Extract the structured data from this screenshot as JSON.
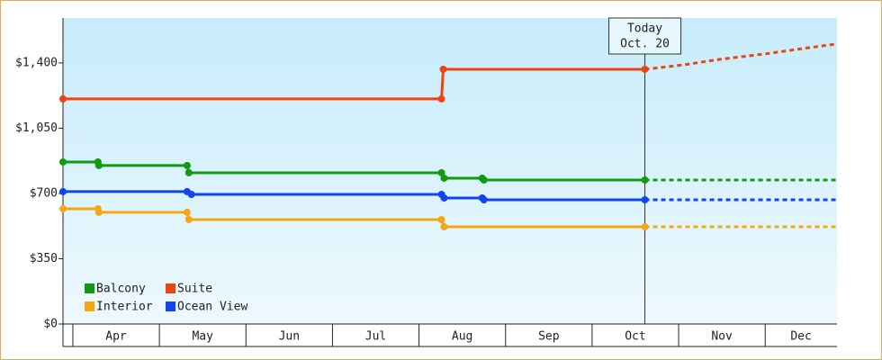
{
  "chart_data": {
    "type": "line",
    "categories": [
      "Apr",
      "May",
      "Jun",
      "Jul",
      "Aug",
      "Sep",
      "Oct",
      "Nov",
      "Dec"
    ],
    "xticks": [
      4,
      5,
      6,
      7,
      8,
      9,
      10,
      11,
      12
    ],
    "xlim": [
      3.886,
      12.83
    ],
    "ylim": [
      0,
      1641
    ],
    "yticks": [
      {
        "value": 0,
        "label": "$0"
      },
      {
        "value": 350,
        "label": "$350"
      },
      {
        "value": 700,
        "label": "$700"
      },
      {
        "value": 1050,
        "label": "$1,050"
      },
      {
        "value": 1400,
        "label": "$1,400"
      }
    ],
    "today": {
      "x": 10.61,
      "label": [
        "Today",
        "Oct. 20"
      ]
    },
    "legend": "lower left",
    "series": [
      {
        "name": "Balcony",
        "color": "#119911",
        "x": [
          3.886,
          4.29,
          4.3,
          5.32,
          5.34,
          8.26,
          8.29,
          8.73,
          8.75,
          10.61,
          12.83
        ],
        "values": [
          869,
          869,
          850,
          850,
          811,
          811,
          782,
          782,
          772,
          772,
          772
        ]
      },
      {
        "name": "Suite",
        "color": "#ee4411",
        "x": [
          3.886,
          8.26,
          8.28,
          10.61,
          11.06,
          11.47,
          11.99,
          12.51,
          12.83
        ],
        "values": [
          1207,
          1207,
          1366,
          1366,
          1390,
          1419,
          1448,
          1482,
          1502
        ]
      },
      {
        "name": "Interior",
        "color": "#f5a614",
        "x": [
          3.886,
          4.29,
          4.3,
          5.32,
          5.34,
          8.26,
          8.29,
          10.61,
          12.83
        ],
        "values": [
          618,
          618,
          599,
          599,
          560,
          560,
          521,
          521,
          521
        ]
      },
      {
        "name": "Ocean View",
        "color": "#1144ee",
        "x": [
          3.886,
          5.32,
          5.37,
          8.26,
          8.29,
          8.73,
          8.75,
          10.61,
          12.83
        ],
        "values": [
          710,
          710,
          695,
          695,
          676,
          676,
          666,
          666,
          666
        ]
      }
    ]
  }
}
